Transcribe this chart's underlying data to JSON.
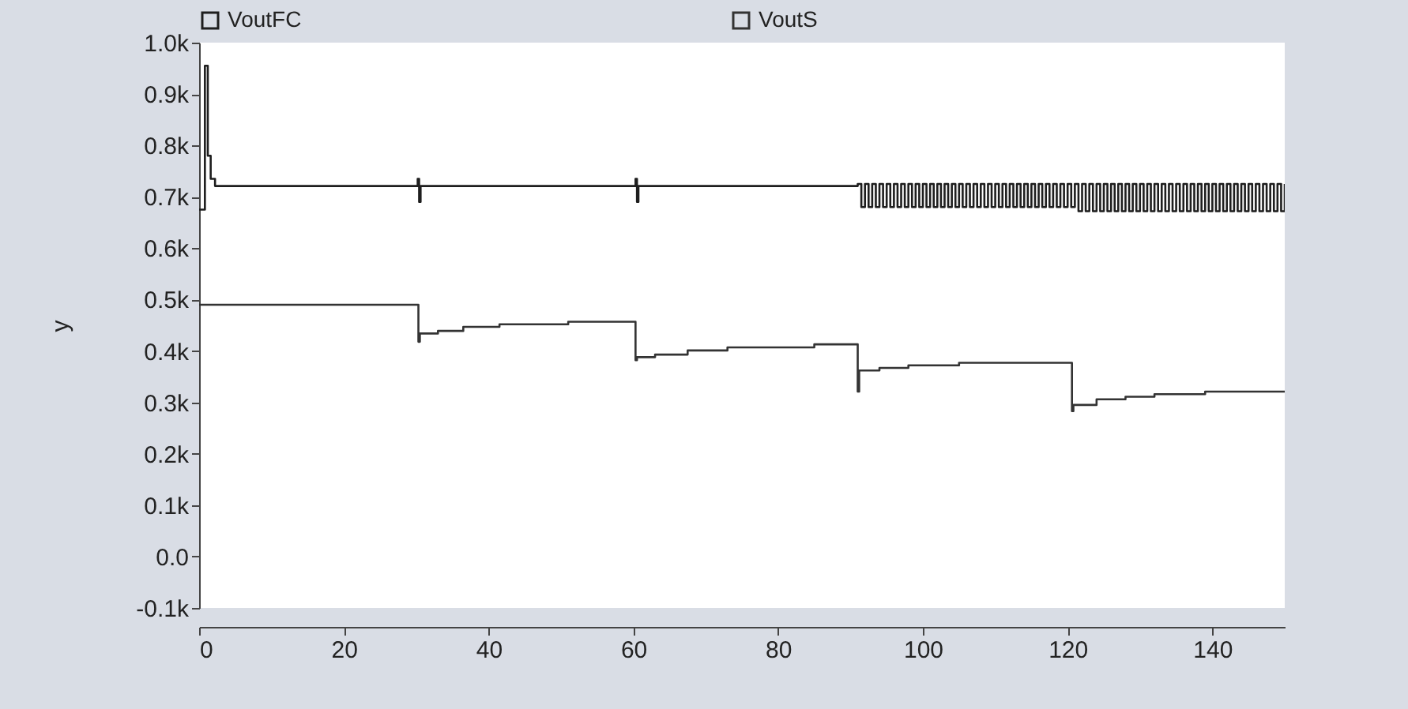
{
  "chart_data": {
    "type": "step",
    "ylabel": "y",
    "legend": "top",
    "grid": false,
    "marker": "none",
    "line_style": "solid",
    "xlim": [
      0,
      150
    ],
    "xticks": [
      0,
      20,
      40,
      60,
      80,
      100,
      120,
      140
    ],
    "ylim": [
      -100,
      1000
    ],
    "yticks": [
      {
        "value": -100,
        "label": "-0.1k"
      },
      {
        "value": 0,
        "label": "0.0"
      },
      {
        "value": 100,
        "label": "0.1k"
      },
      {
        "value": 200,
        "label": "0.2k"
      },
      {
        "value": 300,
        "label": "0.3k"
      },
      {
        "value": 400,
        "label": "0.4k"
      },
      {
        "value": 500,
        "label": "0.5k"
      },
      {
        "value": 600,
        "label": "0.6k"
      },
      {
        "value": 700,
        "label": "0.7k"
      },
      {
        "value": 800,
        "label": "0.8k"
      },
      {
        "value": 900,
        "label": "0.9k"
      },
      {
        "value": 1000,
        "label": "1.0k"
      }
    ],
    "series": [
      {
        "name": "VoutFC",
        "color": "#1e1e1e",
        "x": [
          0,
          0.8,
          1.2,
          1.6,
          2.2,
          30.2,
          30.4,
          30.6,
          60.3,
          60.5,
          60.7,
          91,
          91.5,
          92,
          92.5,
          93,
          93.5,
          94,
          94.5,
          95,
          95.5,
          96,
          96.5,
          97,
          97.5,
          98,
          98.5,
          99,
          99.5,
          100,
          100.5,
          101,
          101.5,
          102,
          102.5,
          103,
          103.5,
          104,
          104.5,
          105,
          105.5,
          106,
          106.5,
          107,
          107.5,
          108,
          108.5,
          109,
          109.5,
          110,
          110.5,
          111,
          111.5,
          112,
          112.5,
          113,
          113.5,
          114,
          114.5,
          115,
          115.5,
          116,
          116.5,
          117,
          117.5,
          118,
          118.5,
          119,
          119.5,
          120,
          120.5,
          121,
          121.5,
          122,
          122.5,
          123,
          123.5,
          124,
          124.5,
          125,
          125.5,
          126,
          126.5,
          127,
          127.5,
          128,
          128.5,
          129,
          129.5,
          130,
          130.5,
          131,
          131.5,
          132,
          132.5,
          133,
          133.5,
          134,
          134.5,
          135,
          135.5,
          136,
          136.5,
          137,
          137.5,
          138,
          138.5,
          139,
          139.5,
          140,
          140.5,
          141,
          141.5,
          142,
          142.5,
          143,
          143.5,
          144,
          144.5,
          145,
          145.5,
          146,
          146.5,
          147,
          147.5,
          148,
          148.5,
          149,
          149.5,
          150
        ],
        "values": [
          675,
          955,
          780,
          735,
          721,
          735,
          690,
          721,
          735,
          690,
          721,
          725,
          680,
          725,
          680,
          725,
          680,
          725,
          680,
          725,
          680,
          725,
          680,
          725,
          680,
          725,
          680,
          725,
          680,
          725,
          680,
          725,
          680,
          725,
          680,
          725,
          680,
          725,
          680,
          725,
          680,
          725,
          680,
          725,
          680,
          725,
          680,
          725,
          680,
          725,
          680,
          725,
          680,
          725,
          680,
          725,
          680,
          725,
          680,
          725,
          680,
          725,
          680,
          725,
          680,
          725,
          680,
          725,
          680,
          725,
          680,
          725,
          672,
          725,
          672,
          725,
          672,
          725,
          672,
          725,
          672,
          725,
          672,
          725,
          672,
          725,
          672,
          725,
          672,
          725,
          672,
          725,
          672,
          725,
          672,
          725,
          672,
          725,
          672,
          725,
          672,
          725,
          672,
          725,
          672,
          725,
          672,
          725,
          672,
          725,
          672,
          725,
          672,
          725,
          672,
          725,
          672,
          725,
          672,
          725,
          672,
          725,
          672,
          725,
          672,
          725,
          672,
          725,
          672,
          725
        ]
      },
      {
        "name": "VoutS",
        "color": "#333333",
        "x": [
          0,
          30.3,
          30.5,
          33,
          36.5,
          41.5,
          51,
          60.3,
          60.5,
          63,
          67.5,
          73,
          85,
          91,
          91.2,
          94,
          98,
          105,
          120.6,
          120.8,
          124,
          128,
          132,
          139,
          150
        ],
        "values": [
          490,
          418,
          434,
          439,
          447,
          452,
          457,
          382,
          388,
          393,
          401,
          407,
          413,
          321,
          362,
          367,
          372,
          377,
          283,
          295,
          306,
          311,
          316,
          321,
          321
        ]
      }
    ]
  }
}
